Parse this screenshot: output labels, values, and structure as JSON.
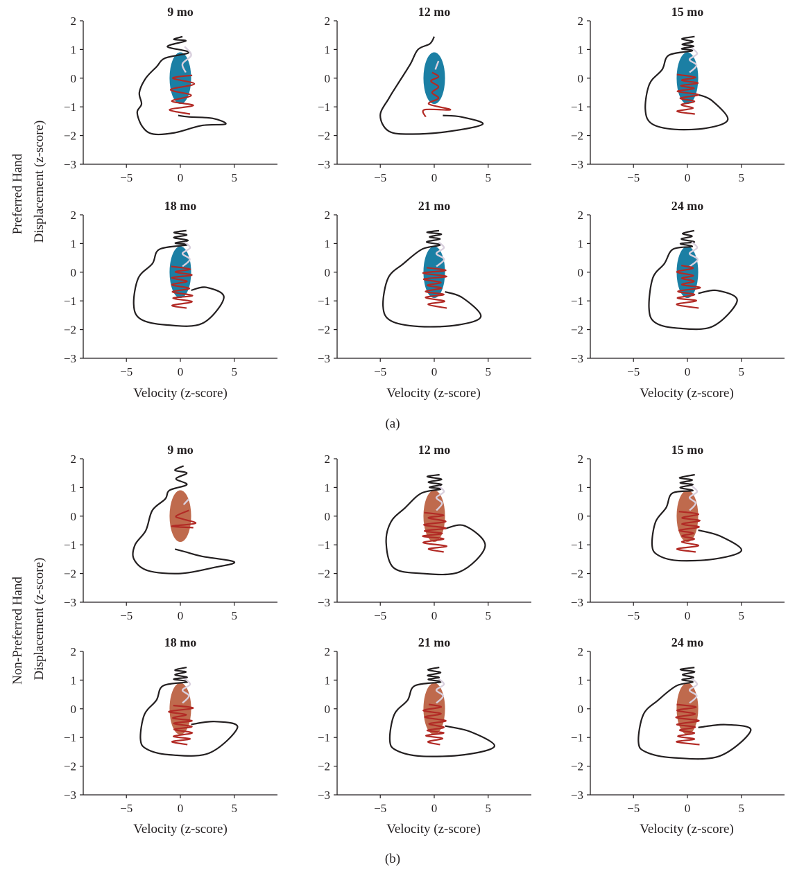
{
  "figure": {
    "parts": [
      {
        "label": "(a)",
        "ylabel_line1": "Preferred Hand",
        "ylabel_line2": "Displacement (z-score)",
        "attractor_color": "#1b7fa4",
        "panels": [
          {
            "title": "9 mo"
          },
          {
            "title": "12 mo"
          },
          {
            "title": "15 mo"
          },
          {
            "title": "18 mo"
          },
          {
            "title": "21 mo"
          },
          {
            "title": "24 mo"
          }
        ]
      },
      {
        "label": "(b)",
        "ylabel_line1": "Non-Preferred Hand",
        "ylabel_line2": "Displacement (z-score)",
        "attractor_color": "#bf6a4d",
        "panels": [
          {
            "title": "9 mo"
          },
          {
            "title": "12 mo"
          },
          {
            "title": "15 mo"
          },
          {
            "title": "18 mo"
          },
          {
            "title": "21 mo"
          },
          {
            "title": "24 mo"
          }
        ]
      }
    ],
    "xlabel": "Velocity (z-score)"
  },
  "chart_data": {
    "type": "line",
    "description_axes": {
      "xlim": [
        -9,
        9
      ],
      "ylim": [
        -3,
        2
      ],
      "xticks": [
        -5,
        0,
        5
      ],
      "yticks": [
        2,
        1,
        0,
        -1,
        -2,
        -3
      ],
      "xlabel": "Velocity (z-score)"
    },
    "series_colors": {
      "trajectory": "#231f20",
      "inside_attractor": "#b22a25",
      "settling": "#d9d0de"
    },
    "ellipse": {
      "center": [
        0,
        0
      ],
      "x_half_width": 1.0,
      "y_half_height": 0.9
    },
    "panels": [
      {
        "part": "a",
        "title": "9 mo",
        "path": [
          [
            0.2,
            1.45
          ],
          [
            -0.6,
            1.35
          ],
          [
            0.5,
            1.3
          ],
          [
            -1.2,
            1.1
          ],
          [
            0.8,
            0.9
          ],
          [
            -1.4,
            0.7
          ],
          [
            -2.2,
            0.4
          ],
          [
            -3.2,
            0.0
          ],
          [
            -3.8,
            -0.5
          ],
          [
            -3.6,
            -0.9
          ],
          [
            -4.0,
            -1.2
          ],
          [
            -3.5,
            -1.7
          ],
          [
            -2.5,
            -1.95
          ],
          [
            -0.5,
            -1.9
          ],
          [
            2.0,
            -1.65
          ],
          [
            4.2,
            -1.6
          ],
          [
            3.0,
            -1.4
          ],
          [
            0.8,
            -1.35
          ],
          [
            -0.2,
            -1.3
          ]
        ],
        "red": [
          [
            0.9,
            -1.25
          ],
          [
            -1.0,
            -1.1
          ],
          [
            1.2,
            -0.95
          ],
          [
            -0.8,
            -0.8
          ],
          [
            1.0,
            -0.6
          ],
          [
            -0.9,
            -0.4
          ],
          [
            1.3,
            -0.2
          ],
          [
            -0.7,
            0.0
          ],
          [
            1.1,
            0.1
          ]
        ],
        "settling": [
          [
            0.5,
            0.2
          ],
          [
            0.2,
            0.5
          ],
          [
            1.0,
            0.8
          ],
          [
            0.4,
            1.1
          ]
        ]
      },
      {
        "part": "a",
        "title": "12 mo",
        "path": [
          [
            0.0,
            1.45
          ],
          [
            -0.4,
            1.2
          ],
          [
            -1.5,
            1.0
          ],
          [
            -2.2,
            0.5
          ],
          [
            -3.2,
            -0.1
          ],
          [
            -4.2,
            -0.7
          ],
          [
            -5.0,
            -1.3
          ],
          [
            -4.2,
            -1.85
          ],
          [
            -2.0,
            -1.95
          ],
          [
            1.5,
            -1.85
          ],
          [
            4.5,
            -1.6
          ],
          [
            2.5,
            -1.35
          ],
          [
            0.8,
            -1.3
          ]
        ],
        "red": [
          [
            -0.8,
            -1.35
          ],
          [
            -0.9,
            -1.1
          ],
          [
            1.5,
            -1.1
          ],
          [
            -0.5,
            -0.9
          ],
          [
            0.4,
            -0.7
          ],
          [
            -0.2,
            -0.5
          ],
          [
            0.4,
            -0.3
          ],
          [
            -0.3,
            -0.1
          ],
          [
            0.4,
            0.05
          ],
          [
            -0.2,
            0.2
          ]
        ],
        "settling": [
          [
            0.1,
            0.3
          ],
          [
            0.4,
            0.6
          ]
        ]
      },
      {
        "part": "b",
        "title": "9 mo",
        "path": [
          [
            0.3,
            1.75
          ],
          [
            -0.5,
            1.6
          ],
          [
            0.6,
            1.5
          ],
          [
            -0.4,
            1.3
          ],
          [
            0.6,
            1.1
          ],
          [
            -1.0,
            0.9
          ],
          [
            -1.4,
            0.6
          ],
          [
            -2.6,
            0.2
          ],
          [
            -3.2,
            -0.5
          ],
          [
            -4.2,
            -1.0
          ],
          [
            -4.3,
            -1.5
          ],
          [
            -3.0,
            -1.9
          ],
          [
            0.0,
            -2.0
          ],
          [
            3.0,
            -1.8
          ],
          [
            5.0,
            -1.6
          ],
          [
            2.0,
            -1.4
          ],
          [
            0.5,
            -1.25
          ],
          [
            -0.5,
            -1.15
          ]
        ],
        "red": [
          [
            1.2,
            -0.4
          ],
          [
            -0.8,
            -0.35
          ],
          [
            1.4,
            -0.25
          ],
          [
            0.2,
            -0.1
          ],
          [
            -0.4,
            0.0
          ],
          [
            0.8,
            0.2
          ]
        ],
        "settling": [
          [
            0.3,
            0.4
          ],
          [
            0.8,
            0.6
          ]
        ]
      }
    ]
  }
}
